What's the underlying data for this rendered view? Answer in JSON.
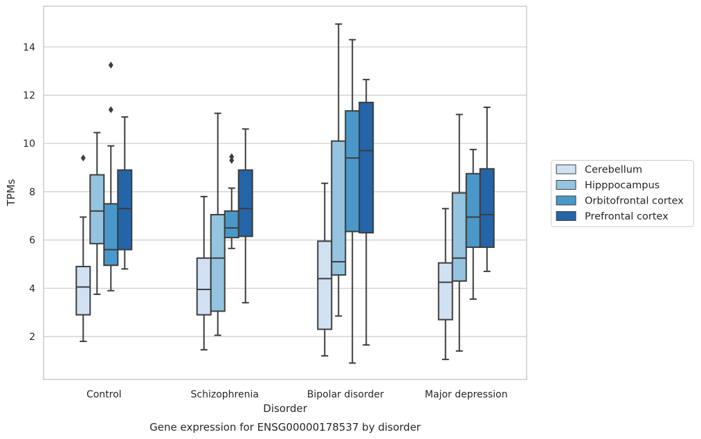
{
  "chart_data": {
    "type": "box",
    "title": "Gene expression for ENSG00000178537 by disorder",
    "xlabel": "Disorder",
    "ylabel": "TPMs",
    "ylim": [
      0.25,
      15.7
    ],
    "yticks": [
      2,
      4,
      6,
      8,
      10,
      12,
      14
    ],
    "grid": "horizontal",
    "legend_position": "right",
    "categories": [
      "Control",
      "Schizophrenia",
      "Bipolar disorder",
      "Major depression"
    ],
    "series": [
      {
        "name": "Cerebellum",
        "color": "#d0e1f2",
        "boxes": [
          {
            "whislo": 1.8,
            "q1": 2.9,
            "med": 4.05,
            "q3": 4.9,
            "whishi": 6.95,
            "fliers": [
              9.4
            ]
          },
          {
            "whislo": 1.45,
            "q1": 2.9,
            "med": 3.95,
            "q3": 5.25,
            "whishi": 7.8,
            "fliers": []
          },
          {
            "whislo": 1.2,
            "q1": 2.3,
            "med": 4.4,
            "q3": 5.95,
            "whishi": 8.35,
            "fliers": []
          },
          {
            "whislo": 1.05,
            "q1": 2.7,
            "med": 4.25,
            "q3": 5.05,
            "whishi": 7.3,
            "fliers": []
          }
        ]
      },
      {
        "name": "Hipppocampus",
        "color": "#94c4df",
        "boxes": [
          {
            "whislo": 3.75,
            "q1": 5.85,
            "med": 7.2,
            "q3": 8.7,
            "whishi": 10.45,
            "fliers": []
          },
          {
            "whislo": 2.05,
            "q1": 3.05,
            "med": 5.25,
            "q3": 7.05,
            "whishi": 11.25,
            "fliers": []
          },
          {
            "whislo": 2.85,
            "q1": 4.55,
            "med": 5.1,
            "q3": 10.1,
            "whishi": 14.95,
            "fliers": []
          },
          {
            "whislo": 1.4,
            "q1": 4.3,
            "med": 5.25,
            "q3": 7.95,
            "whishi": 11.2,
            "fliers": []
          }
        ]
      },
      {
        "name": "Orbitofrontal cortex",
        "color": "#4a98c9",
        "boxes": [
          {
            "whislo": 3.9,
            "q1": 4.95,
            "med": 5.6,
            "q3": 7.5,
            "whishi": 9.9,
            "fliers": [
              11.4,
              13.25
            ]
          },
          {
            "whislo": 5.65,
            "q1": 6.1,
            "med": 6.5,
            "q3": 7.2,
            "whishi": 8.15,
            "fliers": [
              9.3,
              9.45
            ]
          },
          {
            "whislo": 0.9,
            "q1": 6.35,
            "med": 9.4,
            "q3": 11.35,
            "whishi": 14.3,
            "fliers": []
          },
          {
            "whislo": 3.55,
            "q1": 5.7,
            "med": 6.95,
            "q3": 8.75,
            "whishi": 9.75,
            "fliers": []
          }
        ]
      },
      {
        "name": "Prefrontal cortex",
        "color": "#2465a9",
        "boxes": [
          {
            "whislo": 4.8,
            "q1": 5.6,
            "med": 7.3,
            "q3": 8.9,
            "whishi": 11.1,
            "fliers": []
          },
          {
            "whislo": 3.4,
            "q1": 6.15,
            "med": 7.3,
            "q3": 8.9,
            "whishi": 10.6,
            "fliers": []
          },
          {
            "whislo": 1.65,
            "q1": 6.3,
            "med": 9.7,
            "q3": 11.7,
            "whishi": 12.65,
            "fliers": []
          },
          {
            "whislo": 4.7,
            "q1": 5.7,
            "med": 7.05,
            "q3": 8.95,
            "whishi": 11.5,
            "fliers": []
          }
        ]
      }
    ]
  }
}
